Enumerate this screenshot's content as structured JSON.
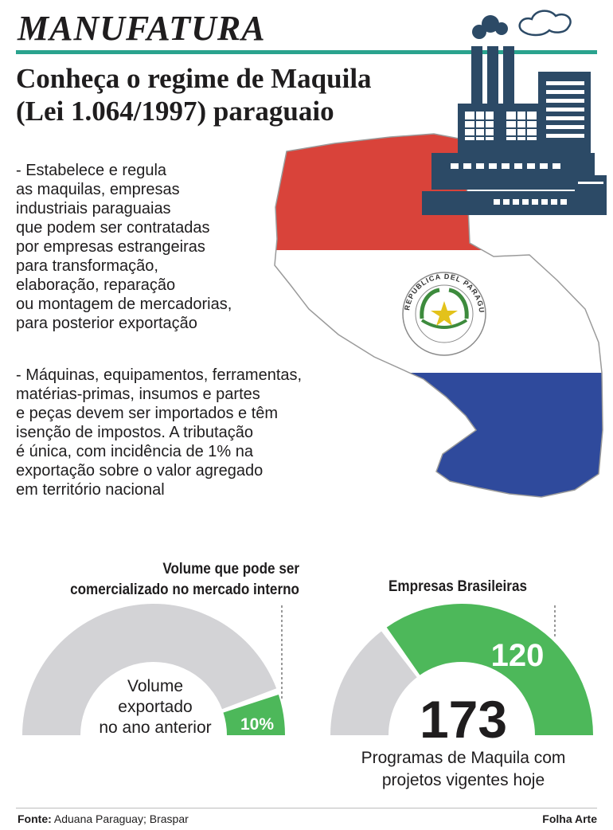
{
  "header": {
    "kicker": "MANUFATURA",
    "headline": "Conheça o regime de Maquila\n(Lei 1.064/1997) paraguaio"
  },
  "body": {
    "paragraph_1": "- Estabelece e regula\nas maquilas, empresas\nindustriais paraguaias\nque podem ser contratadas\npor empresas estrangeiras\npara transformação,\nelaboração, reparação\nou montagem de mercadorias,\npara posterior exportação",
    "paragraph_2": "- Máquinas, equipamentos, ferramentas,\nmatérias-primas, insumos e partes\ne peças devem ser importados e têm\nisenção de impostos. A tributação\né única, com incidência de 1% na\nexportação sobre o valor agregado\nem território nacional"
  },
  "illustration": {
    "icons": [
      "factory-icon",
      "paraguay-map-flag",
      "coat-of-arms-seal"
    ],
    "seal_text": "REPUBLICA DEL PARAGUAY",
    "colors": {
      "red": "#d9433a",
      "blue": "#2f4a9c",
      "factory": "#2c4a66"
    }
  },
  "chart_data": [
    {
      "type": "pie",
      "style": "half-donut gauge",
      "title": "Volume que pode ser\ncomercializado no mercado interno",
      "center_label": "Volume\nexportado\nno ano anterior",
      "highlight_label": "10%",
      "slices": [
        {
          "label": "Volume que pode ser comercializado no mercado interno",
          "value": 10,
          "color": "#4db85a"
        },
        {
          "label": "",
          "value": 90,
          "color": "#d3d3d6"
        }
      ]
    },
    {
      "type": "pie",
      "style": "half-donut gauge",
      "title": "Empresas Brasileiras",
      "total": 173,
      "total_label": "Programas de Maquila com\nprojetos vigentes hoje",
      "slices": [
        {
          "label": "Empresas Brasileiras",
          "value": 120,
          "color": "#4db85a"
        },
        {
          "label": "",
          "value": 53,
          "color": "#d3d3d6"
        }
      ]
    }
  ],
  "footer": {
    "source_label": "Fonte:",
    "source_text": " Aduana Paraguay; Braspar",
    "credit": "Folha Arte"
  }
}
